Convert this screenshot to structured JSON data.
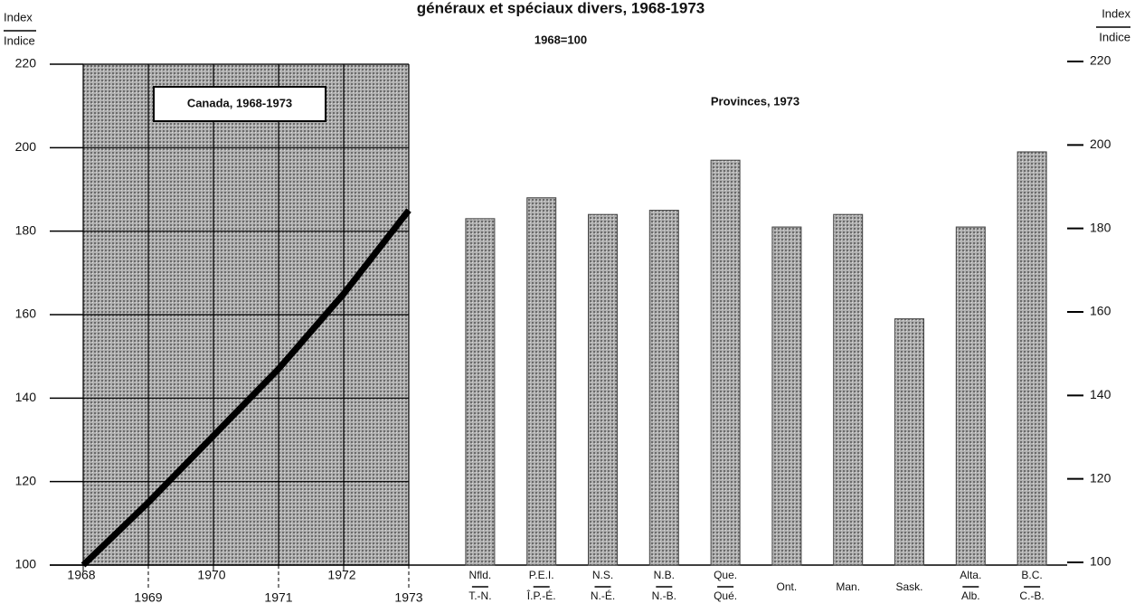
{
  "chart_data": [
    {
      "type": "line",
      "title": "généraux et spéciaux divers, 1968-1973",
      "subtitle": "1968=100",
      "y_label": [
        "Index",
        "Indice"
      ],
      "annotation": "Canada, 1968-1973",
      "x": [
        1968,
        1969,
        1970,
        1971,
        1972,
        1973
      ],
      "values": [
        100,
        115,
        131,
        147,
        165,
        185
      ],
      "color": "#000000",
      "xlim": [
        1968,
        1973
      ],
      "xticks": [
        1968,
        1969,
        1970,
        1971,
        1972,
        1973
      ],
      "ylim": [
        100,
        220
      ],
      "yticks": [
        100,
        120,
        140,
        160,
        180,
        200,
        220
      ],
      "grid": true
    },
    {
      "type": "bar",
      "annotation": "Provinces, 1973",
      "y_label": [
        "Index",
        "Indice"
      ],
      "categories": [
        [
          "Nfld.",
          "T.-N."
        ],
        [
          "P.E.I.",
          "Î.P.-É."
        ],
        [
          "N.S.",
          "N.-É."
        ],
        [
          "N.B.",
          "N.-B."
        ],
        [
          "Que.",
          "Qué."
        ],
        [
          "Ont."
        ],
        [
          "Man."
        ],
        [
          "Sask."
        ],
        [
          "Alta.",
          "Alb."
        ],
        [
          "B.C.",
          "C.-B."
        ]
      ],
      "values": [
        183,
        188,
        184,
        185,
        197,
        181,
        184,
        159,
        181,
        199
      ],
      "color": "#8a8a8a",
      "ylim": [
        100,
        220
      ],
      "yticks": [
        100,
        120,
        140,
        160,
        180,
        200,
        220
      ]
    }
  ]
}
